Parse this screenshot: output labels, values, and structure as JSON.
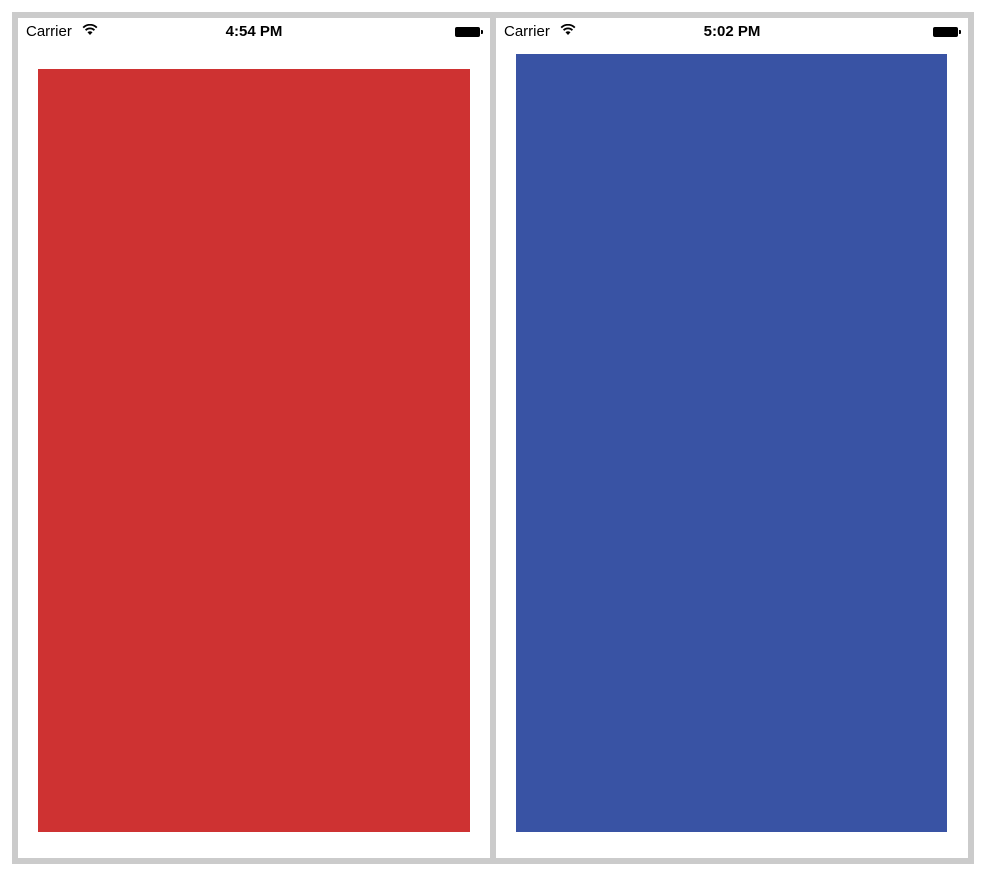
{
  "screens": [
    {
      "carrier": "Carrier",
      "time": "4:54 PM",
      "block_color": "#ce3232",
      "icons": [
        "wifi-icon",
        "battery-icon"
      ]
    },
    {
      "carrier": "Carrier",
      "time": "5:02 PM",
      "block_color": "#3953a4",
      "icons": [
        "wifi-icon",
        "battery-icon"
      ]
    }
  ]
}
